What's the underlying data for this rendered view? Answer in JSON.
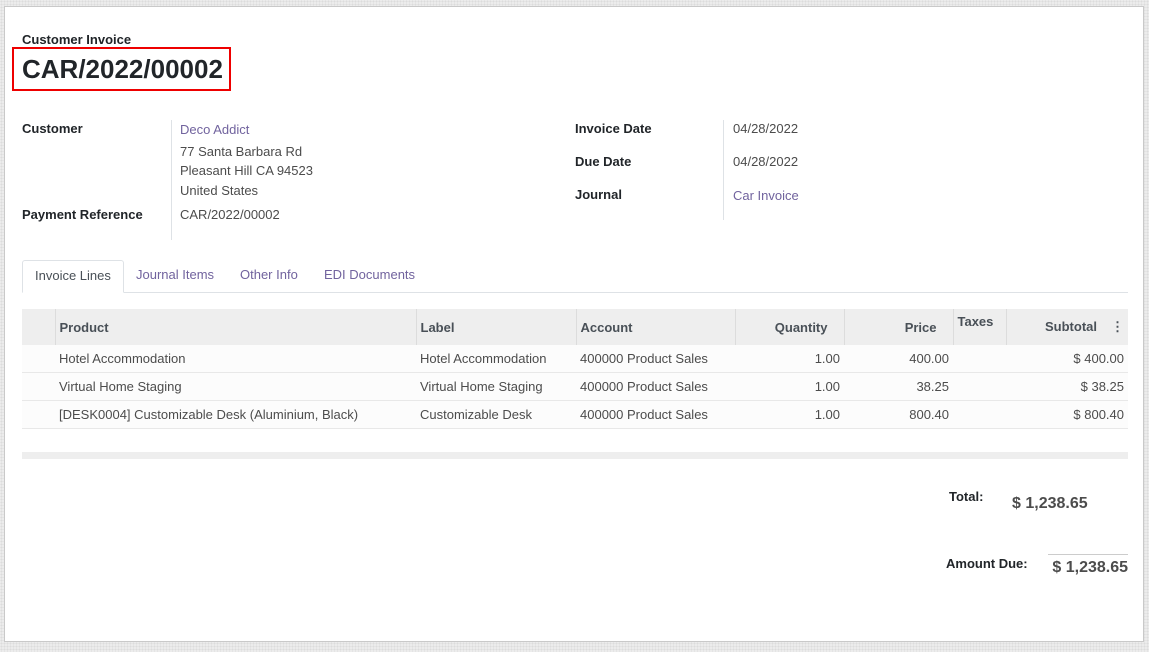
{
  "header": {
    "subtitle": "Customer Invoice",
    "number": "CAR/2022/00002"
  },
  "left": {
    "customer_label": "Customer",
    "customer_name": "Deco Addict",
    "address": [
      "77 Santa Barbara Rd",
      "Pleasant Hill CA 94523",
      "United States"
    ],
    "payment_ref_label": "Payment Reference",
    "payment_ref": "CAR/2022/00002"
  },
  "right": {
    "invoice_date_label": "Invoice Date",
    "invoice_date": "04/28/2022",
    "due_date_label": "Due Date",
    "due_date": "04/28/2022",
    "journal_label": "Journal",
    "journal": "Car Invoice"
  },
  "tabs": [
    {
      "label": "Invoice Lines",
      "active": true
    },
    {
      "label": "Journal Items"
    },
    {
      "label": "Other Info"
    },
    {
      "label": "EDI Documents"
    }
  ],
  "table": {
    "columns": [
      "Product",
      "Label",
      "Account",
      "Quantity",
      "Price",
      "Taxes",
      "Subtotal"
    ],
    "rows": [
      [
        "Hotel Accommodation",
        "Hotel Accommodation",
        "400000 Product Sales",
        "1.00",
        "400.00",
        "",
        "$ 400.00"
      ],
      [
        "Virtual Home Staging",
        "Virtual Home Staging",
        "400000 Product Sales",
        "1.00",
        "38.25",
        "",
        "$ 38.25"
      ],
      [
        "[DESK0004] Customizable Desk (Aluminium, Black)",
        "Customizable Desk",
        "400000 Product Sales",
        "1.00",
        "800.40",
        "",
        "$ 800.40"
      ]
    ]
  },
  "totals": {
    "total_label": "Total:",
    "total": "$ 1,238.65",
    "due_label": "Amount Due:",
    "due": "$ 1,238.65"
  },
  "colors": {
    "link": "#71639e",
    "highlight_border": "#ee0000"
  }
}
